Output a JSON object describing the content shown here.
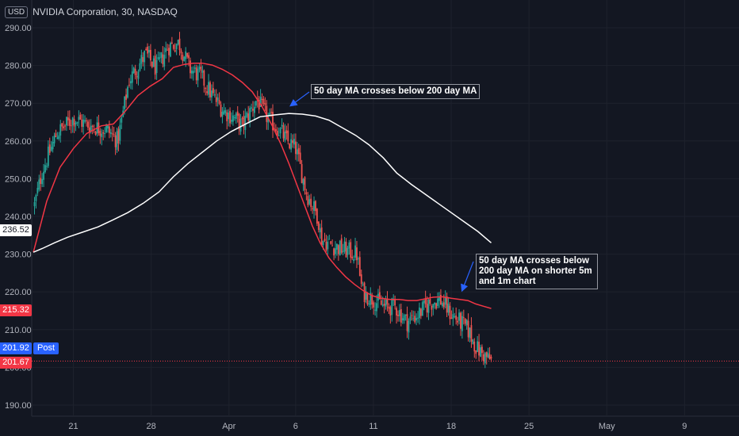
{
  "header": {
    "currency": "USD",
    "title": "NVIDIA Corporation, 30, NASDAQ"
  },
  "price_tags": {
    "tag1": {
      "value": "236.52",
      "bg": "#ffffff",
      "fg": "#131722"
    },
    "tag2": {
      "value": "215.32",
      "bg": "#f23645",
      "fg": "#ffffff"
    },
    "tag3": {
      "value": "201.92",
      "bg": "#2962ff",
      "fg": "#ffffff"
    },
    "tag4": {
      "value": "201.67",
      "bg": "#f23645",
      "fg": "#ffffff"
    },
    "post_label": "Post"
  },
  "annotations": {
    "a1": "50 day MA crosses below 200 day MA",
    "a2": "50 day MA crosses below 200 day MA on shorter 5m and 1m chart"
  },
  "chart_data": {
    "type": "line",
    "title": "NVIDIA Corporation, 30, NASDAQ",
    "ylim": [
      186,
      292
    ],
    "y_ticks": [
      290,
      280,
      270,
      260,
      250,
      240,
      230,
      220,
      210,
      200,
      190
    ],
    "y_tick_labels": [
      "290.00",
      "280.00",
      "270.00",
      "260.00",
      "250.00",
      "240.00",
      "230.00",
      "220.00",
      "210.00",
      "200.00",
      "190.00"
    ],
    "x_ticks": [
      21,
      28,
      35,
      41,
      48,
      55,
      62,
      69,
      76
    ],
    "x_tick_labels": [
      "21",
      "28",
      "Apr",
      "6",
      "11",
      "18",
      "25",
      "May",
      "9"
    ],
    "xlim": [
      17.25,
      80.9
    ],
    "colors": {
      "up": "#26a69a",
      "down": "#ef5350",
      "ma50": "#f23645",
      "ma200": "#ffffff",
      "last_price_line": "#f23645"
    },
    "last_price": 201.67,
    "series": [
      {
        "name": "50 day MA",
        "color": "#f23645",
        "x": [
          17.4,
          18.6,
          19.8,
          21.0,
          22.2,
          23.5,
          24.6,
          25.7,
          26.8,
          27.9,
          29.0,
          30.0,
          31.0,
          31.8,
          32.6,
          33.5,
          34.4,
          35.3,
          36.2,
          37.1,
          38.0,
          38.9,
          39.7,
          40.4,
          41.1,
          41.8,
          42.5,
          43.2,
          44.0,
          44.7,
          45.5,
          46.3,
          47.1,
          47.9,
          48.7,
          49.5,
          50.3,
          51.1,
          51.9,
          52.7,
          53.4,
          54.2,
          55.0,
          55.8,
          56.5,
          57.2,
          57.9,
          58.6
        ],
        "values": [
          230.5,
          244,
          253,
          258,
          262,
          264,
          264.5,
          268,
          272,
          274.5,
          276.5,
          279.5,
          280.3,
          280.6,
          280.6,
          280.1,
          279,
          277.5,
          275.5,
          273,
          269,
          264,
          259,
          254,
          248.5,
          243,
          237.5,
          233,
          229,
          226.5,
          224,
          222,
          220.3,
          219,
          218.3,
          218,
          218,
          217.7,
          217.7,
          218.2,
          218.6,
          218.7,
          218.3,
          218,
          217.7,
          216.8,
          216.2,
          215.6
        ]
      },
      {
        "name": "200 day MA",
        "color": "#ffffff",
        "x": [
          17.4,
          18.2,
          19.3,
          20.5,
          21.8,
          23.2,
          24.5,
          25.9,
          27.3,
          28.7,
          30.0,
          31.3,
          32.6,
          33.9,
          35.2,
          36.5,
          37.8,
          39.1,
          40.4,
          41.6,
          42.8,
          44.0,
          45.2,
          46.4,
          47.6,
          48.9,
          50.1,
          51.4,
          52.6,
          53.8,
          55.0,
          56.2,
          57.4,
          58.6
        ],
        "values": [
          230.5,
          231.5,
          233,
          234.5,
          235.8,
          237.2,
          239,
          241,
          243.5,
          246.5,
          250.5,
          254,
          257,
          260,
          262.5,
          264.5,
          266.4,
          266.9,
          267.3,
          267.1,
          266.6,
          265.5,
          263.5,
          261.5,
          259,
          255.5,
          251.5,
          248.5,
          246,
          243.5,
          241,
          238.5,
          236,
          233
        ]
      }
    ],
    "candles": {
      "x_range": [
        17.5,
        58.6
      ],
      "count": 300,
      "seed": 12345
    }
  }
}
